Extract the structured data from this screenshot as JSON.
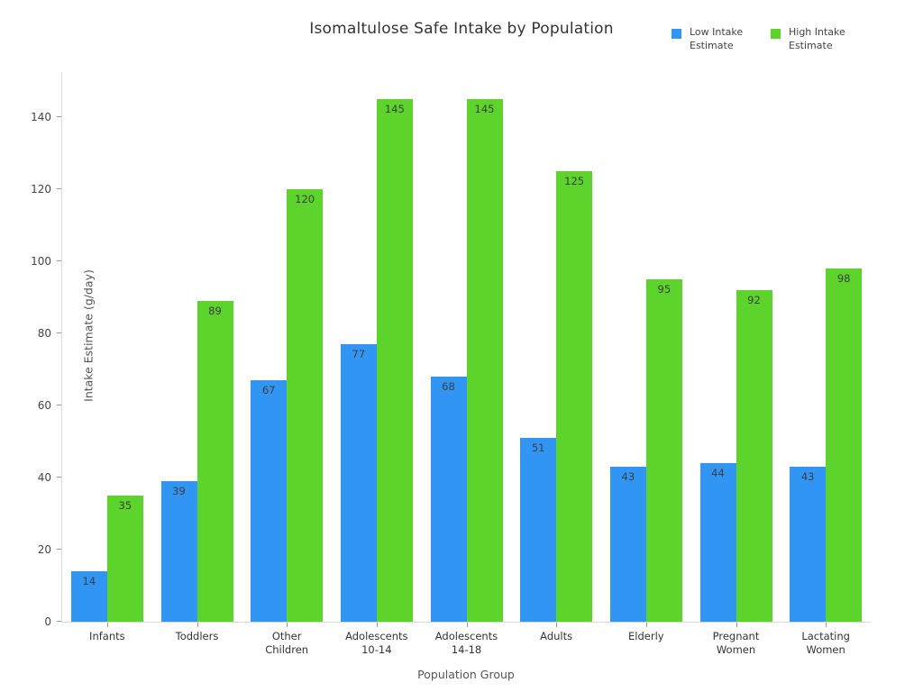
{
  "chart_data": {
    "type": "bar",
    "title": "Isomaltulose Safe Intake by Population",
    "xlabel": "Population Group",
    "ylabel": "Intake Estimate (g/day)",
    "categories": [
      "Infants",
      "Toddlers",
      "Other\nChildren",
      "Adolescents\n10-14",
      "Adolescents\n14-18",
      "Adults",
      "Elderly",
      "Pregnant\nWomen",
      "Lactating\nWomen"
    ],
    "series": [
      {
        "name": "Low Intake Estimate",
        "color": "#3196f3",
        "values": [
          14,
          39,
          67,
          77,
          68,
          51,
          43,
          44,
          43
        ]
      },
      {
        "name": "High Intake Estimate",
        "color": "#5cd42c",
        "values": [
          35,
          89,
          120,
          145,
          145,
          125,
          95,
          92,
          98
        ]
      }
    ],
    "ylim": [
      0,
      152.5
    ],
    "yticks": [
      0,
      20,
      40,
      60,
      80,
      100,
      120,
      140
    ],
    "grid": false,
    "legend_position": "top-right",
    "bar_value_labels": true,
    "value_label_color": "#3d3d3d"
  }
}
